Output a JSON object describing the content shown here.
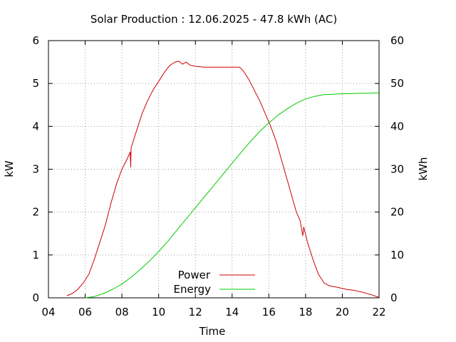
{
  "chart_data": {
    "type": "line",
    "title": "Solar Production : 12.06.2025 - 47.8 kWh (AC)",
    "xlabel": "Time",
    "ylabel": "kW",
    "y2label": "kWh",
    "xlim": [
      4,
      22
    ],
    "ylim": [
      0,
      6
    ],
    "y2lim": [
      0,
      60
    ],
    "x_ticks": [
      "04",
      "06",
      "08",
      "10",
      "12",
      "14",
      "16",
      "18",
      "20",
      "22"
    ],
    "y_ticks": [
      "0",
      "1",
      "2",
      "3",
      "4",
      "5",
      "6"
    ],
    "y2_ticks": [
      "0",
      "10",
      "20",
      "30",
      "40",
      "50",
      "60"
    ],
    "grid": true,
    "legend_position": "bottom-center",
    "series": [
      {
        "name": "Power",
        "axis": "left",
        "color": "#cc0000",
        "points": [
          [
            5.0,
            0.05
          ],
          [
            5.3,
            0.1
          ],
          [
            5.6,
            0.2
          ],
          [
            5.9,
            0.35
          ],
          [
            6.2,
            0.55
          ],
          [
            6.5,
            0.9
          ],
          [
            6.8,
            1.3
          ],
          [
            7.1,
            1.7
          ],
          [
            7.4,
            2.2
          ],
          [
            7.7,
            2.65
          ],
          [
            8.0,
            3.0
          ],
          [
            8.3,
            3.25
          ],
          [
            8.45,
            3.4
          ],
          [
            8.48,
            3.05
          ],
          [
            8.5,
            3.5
          ],
          [
            8.8,
            3.9
          ],
          [
            9.1,
            4.3
          ],
          [
            9.4,
            4.6
          ],
          [
            9.7,
            4.85
          ],
          [
            10.0,
            5.05
          ],
          [
            10.3,
            5.25
          ],
          [
            10.6,
            5.42
          ],
          [
            10.9,
            5.5
          ],
          [
            11.1,
            5.52
          ],
          [
            11.3,
            5.45
          ],
          [
            11.5,
            5.5
          ],
          [
            11.7,
            5.43
          ],
          [
            12.0,
            5.4
          ],
          [
            12.5,
            5.38
          ],
          [
            13.0,
            5.38
          ],
          [
            13.5,
            5.38
          ],
          [
            14.0,
            5.38
          ],
          [
            14.4,
            5.38
          ],
          [
            14.6,
            5.3
          ],
          [
            14.9,
            5.1
          ],
          [
            15.2,
            4.85
          ],
          [
            15.5,
            4.6
          ],
          [
            15.8,
            4.3
          ],
          [
            16.1,
            4.0
          ],
          [
            16.4,
            3.65
          ],
          [
            16.7,
            3.2
          ],
          [
            17.0,
            2.75
          ],
          [
            17.3,
            2.3
          ],
          [
            17.5,
            2.0
          ],
          [
            17.7,
            1.8
          ],
          [
            17.85,
            1.45
          ],
          [
            17.9,
            1.65
          ],
          [
            18.1,
            1.3
          ],
          [
            18.4,
            0.9
          ],
          [
            18.7,
            0.55
          ],
          [
            19.0,
            0.35
          ],
          [
            19.3,
            0.28
          ],
          [
            19.7,
            0.25
          ],
          [
            20.2,
            0.2
          ],
          [
            20.7,
            0.17
          ],
          [
            21.2,
            0.12
          ],
          [
            21.6,
            0.07
          ],
          [
            22.0,
            0.01
          ]
        ]
      },
      {
        "name": "Energy",
        "axis": "right",
        "color": "#00cc00",
        "points": [
          [
            6.0,
            0.0
          ],
          [
            6.5,
            0.3
          ],
          [
            7.0,
            1.0
          ],
          [
            7.5,
            2.0
          ],
          [
            8.0,
            3.2
          ],
          [
            8.5,
            4.8
          ],
          [
            9.0,
            6.6
          ],
          [
            9.5,
            8.6
          ],
          [
            10.0,
            10.8
          ],
          [
            10.5,
            13.2
          ],
          [
            11.0,
            15.8
          ],
          [
            11.5,
            18.4
          ],
          [
            12.0,
            21.0
          ],
          [
            12.5,
            23.6
          ],
          [
            13.0,
            26.2
          ],
          [
            13.5,
            28.8
          ],
          [
            14.0,
            31.4
          ],
          [
            14.5,
            34.0
          ],
          [
            15.0,
            36.5
          ],
          [
            15.5,
            38.8
          ],
          [
            16.0,
            40.8
          ],
          [
            16.5,
            42.6
          ],
          [
            17.0,
            44.1
          ],
          [
            17.5,
            45.4
          ],
          [
            18.0,
            46.4
          ],
          [
            18.5,
            47.0
          ],
          [
            19.0,
            47.4
          ],
          [
            19.5,
            47.5
          ],
          [
            20.0,
            47.6
          ],
          [
            21.0,
            47.7
          ],
          [
            22.0,
            47.8
          ]
        ]
      }
    ]
  }
}
